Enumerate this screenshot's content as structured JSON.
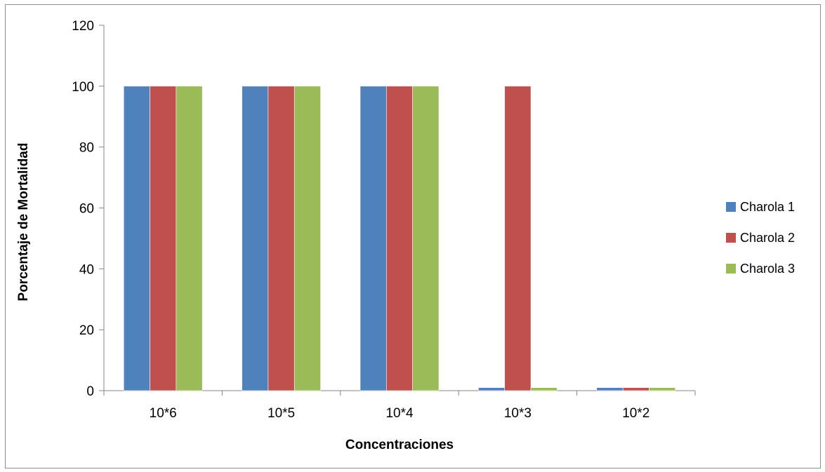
{
  "chart_data": {
    "type": "bar",
    "categories": [
      "10*6",
      "10*5",
      "10*4",
      "10*3",
      "10*2"
    ],
    "series": [
      {
        "name": "Charola 1",
        "color": "#4f81bd",
        "values": [
          100,
          100,
          100,
          1,
          1
        ]
      },
      {
        "name": "Charola 2",
        "color": "#c0504d",
        "values": [
          100,
          100,
          100,
          100,
          1
        ]
      },
      {
        "name": "Charola 3",
        "color": "#9bbb59",
        "values": [
          100,
          100,
          100,
          1,
          1
        ]
      }
    ],
    "xlabel": "Concentraciones",
    "ylabel": "Porcentaje de Mortalidad",
    "ylim": [
      0,
      120
    ],
    "yticks": [
      0,
      20,
      40,
      60,
      80,
      100,
      120
    ],
    "grid": false,
    "legend_position": "right"
  }
}
